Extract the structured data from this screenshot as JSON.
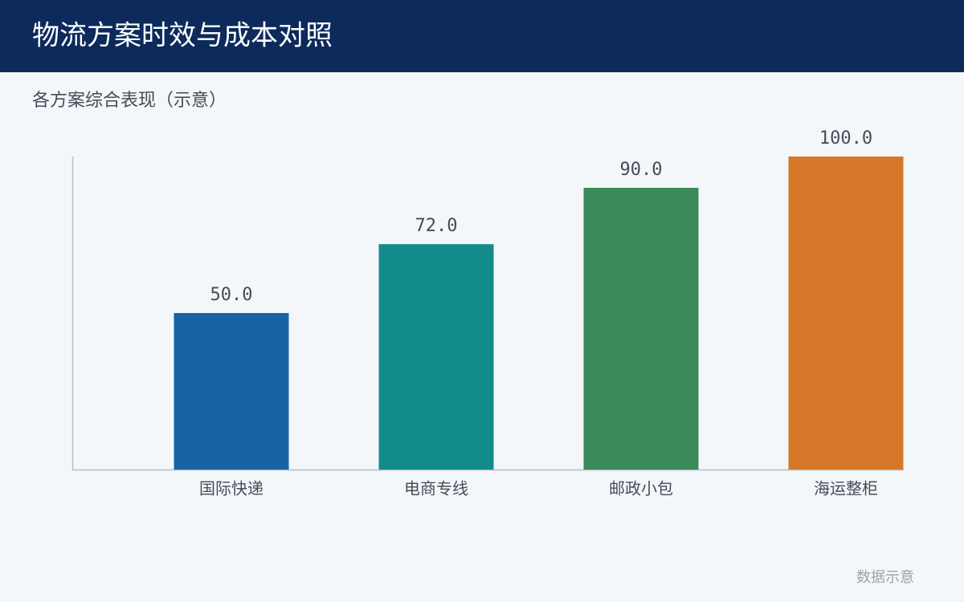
{
  "chart_data": {
    "type": "bar",
    "title": "物流方案时效与成本对照",
    "subtitle": "各方案综合表现（示意）",
    "categories": [
      "国际快递",
      "电商专线",
      "邮政小包",
      "海运整柜"
    ],
    "values": [
      50,
      72,
      90,
      100
    ],
    "value_labels": [
      "50.0",
      "72.0",
      "90.0",
      "100.0"
    ],
    "colors": [
      "#1763a6",
      "#138b8b",
      "#3a8a5a",
      "#d6782a"
    ],
    "ylim": [
      0,
      100
    ],
    "note": "数据示意"
  }
}
